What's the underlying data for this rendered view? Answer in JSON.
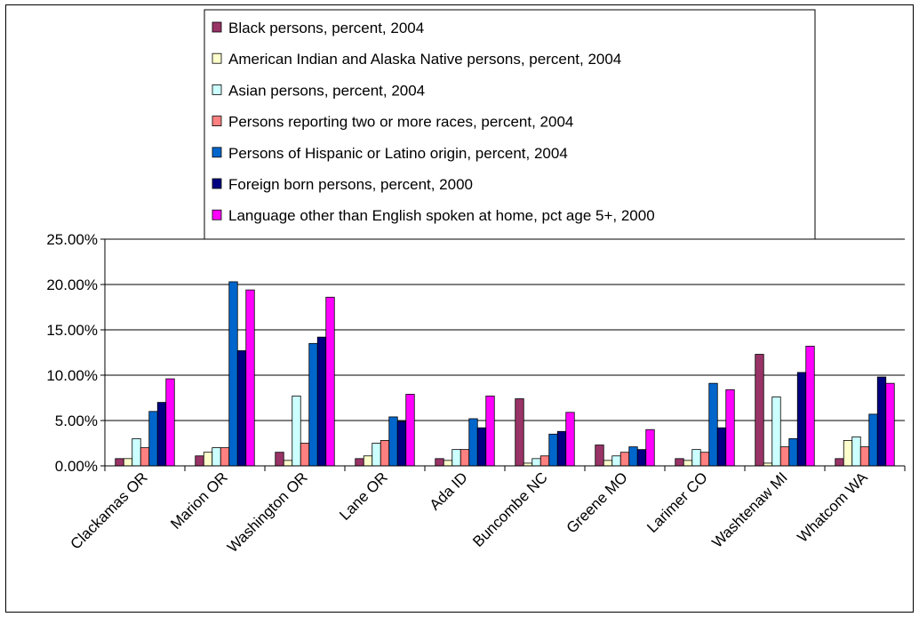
{
  "chart_data": {
    "type": "bar",
    "categories": [
      "Clackamas OR",
      "Marion OR",
      "Washington OR",
      "Lane OR",
      "Ada ID",
      "Buncombe NC",
      "Greene MO",
      "Larimer CO",
      "Washtenaw MI",
      "Whatcom WA"
    ],
    "series": [
      {
        "name": "Black persons, percent, 2004",
        "color": "#993366",
        "values": [
          0.8,
          1.1,
          1.5,
          0.8,
          0.8,
          7.4,
          2.3,
          0.8,
          12.3,
          0.8
        ]
      },
      {
        "name": "American Indian and Alaska Native persons, percent, 2004",
        "color": "#FFFFCC",
        "values": [
          0.8,
          1.5,
          0.6,
          1.1,
          0.6,
          0.3,
          0.6,
          0.6,
          0.3,
          2.8
        ]
      },
      {
        "name": "Asian persons, percent, 2004",
        "color": "#CCFFFF",
        "values": [
          3.0,
          2.0,
          7.7,
          2.5,
          1.8,
          0.8,
          1.1,
          1.8,
          7.6,
          3.2
        ]
      },
      {
        "name": "Persons reporting two or more races, percent, 2004",
        "color": "#FF8080",
        "values": [
          2.0,
          2.0,
          2.5,
          2.8,
          1.8,
          1.1,
          1.5,
          1.5,
          2.1,
          2.1
        ]
      },
      {
        "name": "Persons of Hispanic or Latino origin, percent, 2004",
        "color": "#0066CC",
        "values": [
          6.0,
          20.3,
          13.5,
          5.4,
          5.2,
          3.5,
          2.1,
          9.1,
          3.0,
          5.7
        ]
      },
      {
        "name": "Foreign born persons, percent, 2000",
        "color": "#000080",
        "values": [
          7.0,
          12.7,
          14.2,
          4.9,
          4.2,
          3.8,
          1.8,
          4.2,
          10.3,
          9.8
        ]
      },
      {
        "name": "Language other than English spoken at home, pct age 5+, 2000",
        "color": "#FF00FF",
        "values": [
          9.6,
          19.4,
          18.6,
          7.9,
          7.7,
          5.9,
          4.0,
          8.4,
          13.2,
          9.1
        ]
      }
    ],
    "yticks": [
      "0.00%",
      "5.00%",
      "10.00%",
      "15.00%",
      "20.00%",
      "25.00%"
    ],
    "ylim": [
      0,
      25
    ],
    "grid": true,
    "legend_position": "top-center",
    "title": "",
    "xlabel": "",
    "ylabel": ""
  }
}
